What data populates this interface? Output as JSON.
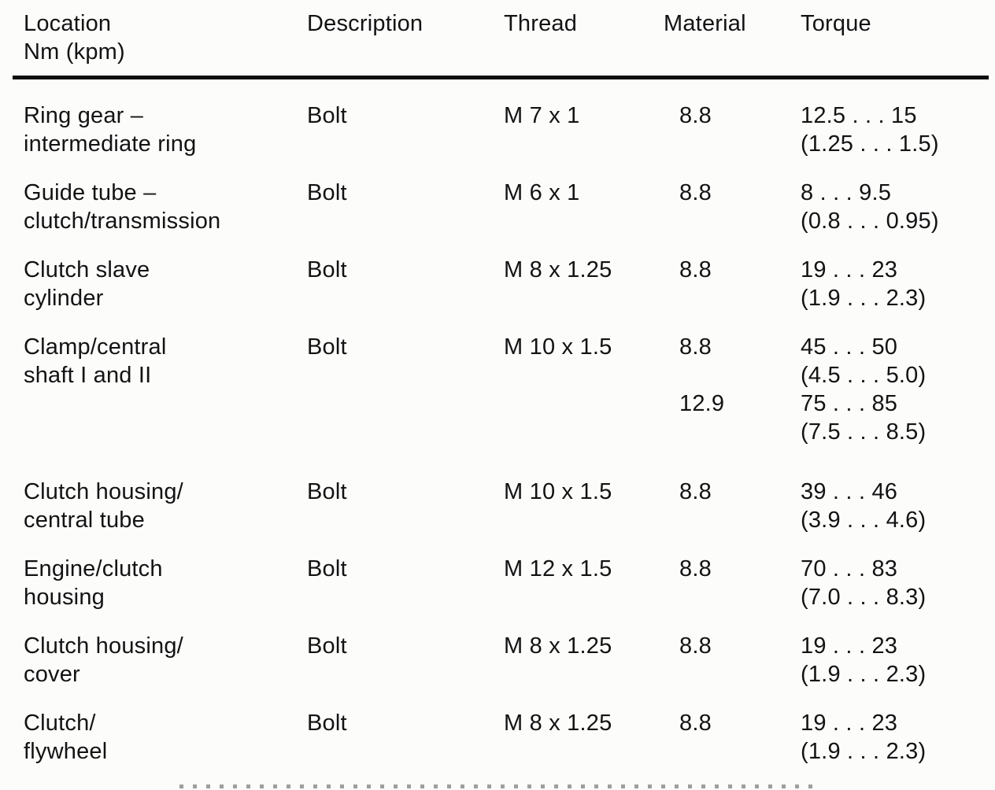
{
  "headers": {
    "location": "Location\nNm (kpm)",
    "description": "Description",
    "thread": "Thread",
    "material": "Material",
    "torque": "Torque"
  },
  "rows": [
    {
      "location": "Ring gear –\nintermediate ring",
      "description": "Bolt",
      "thread": "M 7 x 1",
      "material": "8.8",
      "torque": "12.5 . . . 15\n(1.25 . . . 1.5)"
    },
    {
      "location": "Guide tube –\nclutch/transmission",
      "description": "Bolt",
      "thread": "M 6 x 1",
      "material": "8.8",
      "torque": "8 . . . 9.5\n(0.8 . . . 0.95)"
    },
    {
      "location": "Clutch slave\ncylinder",
      "description": "Bolt",
      "thread": "M 8 x 1.25",
      "material": "8.8",
      "torque": "19 . . . 23\n(1.9 . . . 2.3)"
    },
    {
      "location": "Clamp/central\nshaft I and II",
      "description": "Bolt",
      "thread": "M 10 x 1.5",
      "material": "8.8\n\n12.9",
      "torque": "45 . . . 50\n(4.5 . . . 5.0)\n75 . . . 85\n(7.5 . . . 8.5)"
    },
    {
      "location": "Clutch housing/\ncentral tube",
      "description": "Bolt",
      "thread": "M 10 x 1.5",
      "material": "8.8",
      "torque": "39 . . . 46\n(3.9 . . . 4.6)"
    },
    {
      "location": "Engine/clutch\nhousing",
      "description": "Bolt",
      "thread": "M 12 x 1.5",
      "material": "8.8",
      "torque": "70 . . . 83\n(7.0 . . . 8.3)"
    },
    {
      "location": "Clutch housing/\ncover",
      "description": "Bolt",
      "thread": "M 8 x 1.25",
      "material": "8.8",
      "torque": "19 . . . 23\n(1.9 . . . 2.3)"
    },
    {
      "location": "Clutch/\nflywheel",
      "description": "Bolt",
      "thread": "M 8 x 1.25",
      "material": "8.8",
      "torque": "19 . . . 23\n(1.9 . . . 2.3)"
    }
  ]
}
